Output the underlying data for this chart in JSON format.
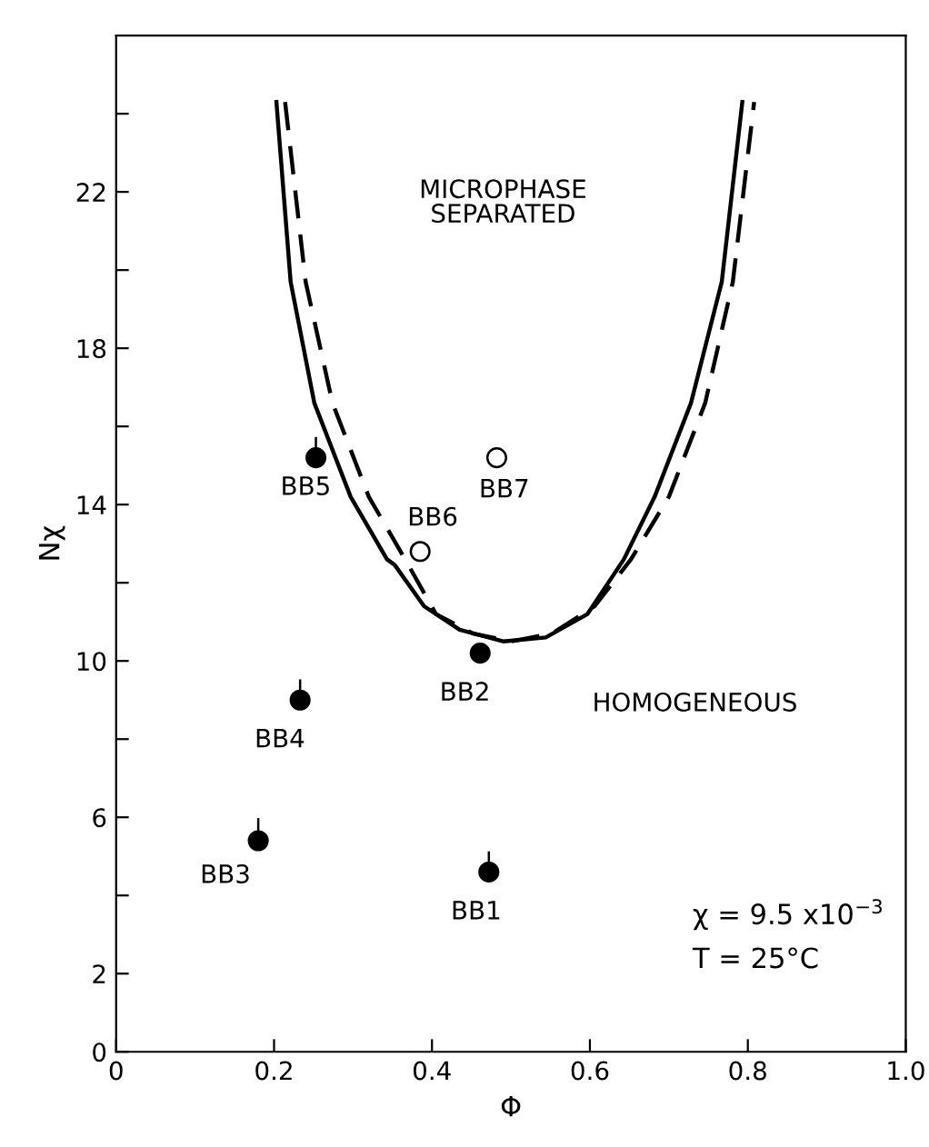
{
  "chart_data": {
    "type": "scatter",
    "xlabel": "Φ",
    "ylabel": "Nχ",
    "xlim": [
      0,
      1.0
    ],
    "ylim": [
      0,
      26
    ],
    "xticks": [
      0,
      0.2,
      0.4,
      0.6,
      0.8,
      {
        "value": 1.0,
        "label": "1.0"
      }
    ],
    "yticks": [
      0,
      2,
      {
        "value": 4,
        "label": null
      },
      6,
      {
        "value": 8,
        "label": null
      },
      10,
      {
        "value": 12,
        "label": null
      },
      14,
      {
        "value": 16,
        "label": null
      },
      18,
      {
        "value": 20,
        "label": null
      },
      22,
      {
        "value": 24,
        "label": null
      }
    ],
    "grid": false,
    "legend": false,
    "series": [
      {
        "marker": "circle",
        "color": "#000000",
        "x": [
          0.472,
          0.461,
          0.18,
          0.233,
          0.253
        ],
        "values": [
          4.6,
          10.2,
          5.4,
          9.0,
          15.2
        ],
        "errors": [
          [
            4.6,
            5.1
          ],
          null,
          [
            5.4,
            5.95
          ],
          [
            9.0,
            9.5
          ],
          [
            15.2,
            15.7
          ]
        ]
      },
      {
        "marker": "circle",
        "color": "#ffffff",
        "x": [
          0.385,
          0.482
        ],
        "values": [
          12.8,
          15.2
        ]
      },
      {
        "type": "line",
        "line_style": "solid",
        "color": "#000000",
        "x": [
          0.203,
          0.221,
          0.251,
          0.297,
          0.343,
          0.353,
          0.39,
          0.435,
          0.49,
          0.544,
          0.597,
          0.643,
          0.682,
          0.728,
          0.767,
          0.793
        ],
        "values": [
          24.3,
          19.7,
          16.6,
          14.2,
          12.6,
          12.45,
          11.4,
          10.8,
          10.5,
          10.6,
          11.2,
          12.6,
          14.2,
          16.6,
          19.7,
          24.3
        ]
      },
      {
        "type": "line",
        "line_style": "dashed",
        "color": "#000000",
        "x": [
          0.214,
          0.24,
          0.274,
          0.32,
          0.366,
          0.405,
          0.452,
          0.5,
          0.552,
          0.606,
          0.652,
          0.7,
          0.746,
          0.781,
          0.808
        ],
        "values": [
          24.3,
          19.7,
          16.6,
          14.2,
          12.6,
          11.2,
          10.7,
          10.5,
          10.7,
          11.4,
          12.6,
          14.2,
          16.6,
          19.7,
          24.3
        ]
      }
    ],
    "annotations": [
      "MICROPHASE\nSEPARATED",
      "HOMOGENEOUS",
      {
        "text": "BB1",
        "x": 0.472,
        "y": 4.6
      },
      {
        "text": "BB2",
        "x": 0.461,
        "y": 10.2
      },
      {
        "text": "BB3",
        "x": 0.18,
        "y": 5.4
      },
      {
        "text": "BB4",
        "x": 0.233,
        "y": 9.0
      },
      {
        "text": "BB5",
        "x": 0.253,
        "y": 15.2
      },
      {
        "text": "BB6",
        "x": 0.385,
        "y": 12.8
      },
      {
        "text": "BB7",
        "x": 0.482,
        "y": 15.2
      },
      "χ = 9.5 x10$^{−3}$",
      "T = 25°C"
    ]
  }
}
